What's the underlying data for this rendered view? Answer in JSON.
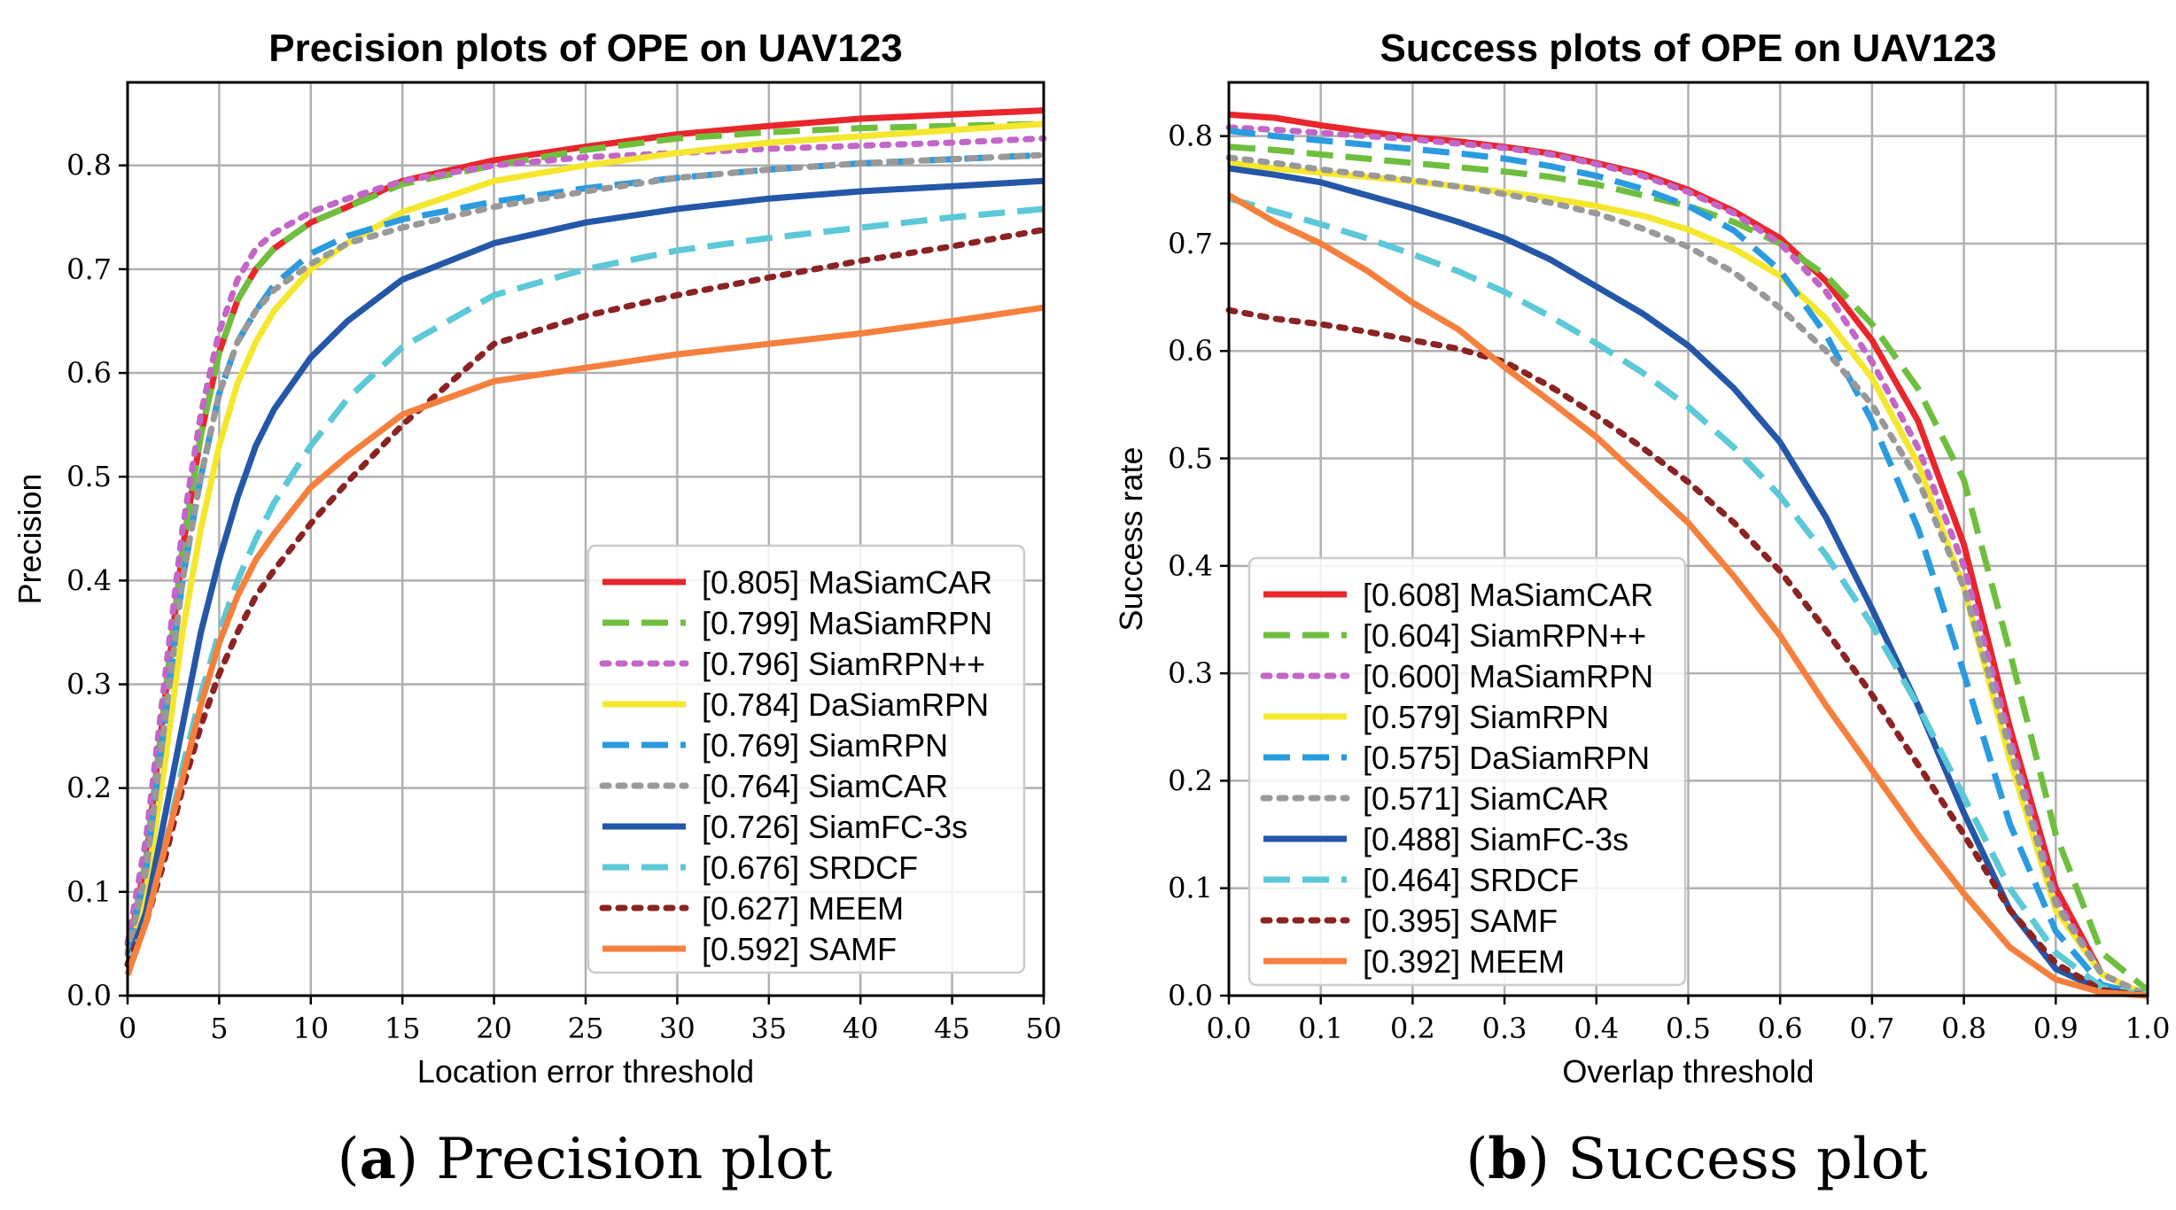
{
  "figure": {
    "caption_a": {
      "label": "a",
      "text": "Precision plot"
    },
    "caption_b": {
      "label": "b",
      "text": "Success plot"
    }
  },
  "chart_data": [
    {
      "type": "line",
      "title": "Precision plots of OPE on UAV123",
      "xlabel": "Location error threshold",
      "ylabel": "Precision",
      "xlim": [
        0,
        50
      ],
      "ylim": [
        0,
        0.88
      ],
      "xticks": [
        0,
        5,
        10,
        15,
        20,
        25,
        30,
        35,
        40,
        45,
        50
      ],
      "xtick_labels": [
        "0",
        "5",
        "10",
        "15",
        "20",
        "25",
        "30",
        "35",
        "40",
        "45",
        "50"
      ],
      "yticks": [
        0.0,
        0.1,
        0.2,
        0.3,
        0.4,
        0.5,
        0.6,
        0.7,
        0.8
      ],
      "ytick_labels": [
        "0.0",
        "0.1",
        "0.2",
        "0.3",
        "0.4",
        "0.5",
        "0.6",
        "0.7",
        "0.8"
      ],
      "grid": true,
      "legend_position": "lower-right",
      "x": [
        0,
        1,
        2,
        3,
        4,
        5,
        6,
        7,
        8,
        10,
        12,
        15,
        20,
        25,
        30,
        35,
        40,
        45,
        50
      ],
      "series": [
        {
          "name": "[0.805] MaSiamCAR",
          "color": "#e8262b",
          "style": "solid",
          "values": [
            0.04,
            0.13,
            0.28,
            0.43,
            0.54,
            0.62,
            0.67,
            0.7,
            0.72,
            0.745,
            0.76,
            0.785,
            0.805,
            0.818,
            0.83,
            0.838,
            0.845,
            0.849,
            0.853
          ]
        },
        {
          "name": "[0.799] MaSiamRPN",
          "color": "#6fbf3f",
          "style": "dashed",
          "values": [
            0.04,
            0.13,
            0.28,
            0.43,
            0.54,
            0.62,
            0.67,
            0.7,
            0.72,
            0.745,
            0.76,
            0.782,
            0.8,
            0.815,
            0.826,
            0.832,
            0.836,
            0.838,
            0.84
          ]
        },
        {
          "name": "[0.796] SiamRPN++",
          "color": "#c266c8",
          "style": "dotted",
          "values": [
            0.05,
            0.15,
            0.3,
            0.45,
            0.56,
            0.64,
            0.69,
            0.72,
            0.735,
            0.755,
            0.768,
            0.785,
            0.8,
            0.808,
            0.812,
            0.816,
            0.819,
            0.822,
            0.826
          ]
        },
        {
          "name": "[0.784] DaSiamRPN",
          "color": "#f5e72e",
          "style": "solid",
          "values": [
            0.03,
            0.1,
            0.22,
            0.35,
            0.45,
            0.53,
            0.59,
            0.63,
            0.66,
            0.7,
            0.725,
            0.755,
            0.785,
            0.8,
            0.812,
            0.822,
            0.828,
            0.834,
            0.84
          ]
        },
        {
          "name": "[0.769] SiamRPN",
          "color": "#2b9be0",
          "style": "dashed",
          "values": [
            0.04,
            0.12,
            0.26,
            0.4,
            0.5,
            0.58,
            0.63,
            0.66,
            0.685,
            0.715,
            0.732,
            0.748,
            0.765,
            0.778,
            0.788,
            0.796,
            0.802,
            0.806,
            0.81
          ]
        },
        {
          "name": "[0.764] SiamCAR",
          "color": "#999999",
          "style": "dotted",
          "values": [
            0.04,
            0.12,
            0.26,
            0.4,
            0.5,
            0.58,
            0.63,
            0.66,
            0.68,
            0.705,
            0.725,
            0.74,
            0.76,
            0.775,
            0.788,
            0.796,
            0.802,
            0.806,
            0.81
          ]
        },
        {
          "name": "[0.726] SiamFC-3s",
          "color": "#2457a8",
          "style": "solid",
          "values": [
            0.03,
            0.08,
            0.17,
            0.26,
            0.35,
            0.42,
            0.48,
            0.53,
            0.565,
            0.615,
            0.65,
            0.69,
            0.725,
            0.745,
            0.758,
            0.768,
            0.775,
            0.78,
            0.785
          ]
        },
        {
          "name": "[0.676] SRDCF",
          "color": "#5cc8d8",
          "style": "dashed",
          "values": [
            0.03,
            0.07,
            0.14,
            0.22,
            0.29,
            0.35,
            0.4,
            0.44,
            0.475,
            0.53,
            0.575,
            0.625,
            0.675,
            0.7,
            0.718,
            0.73,
            0.74,
            0.75,
            0.758
          ]
        },
        {
          "name": "[0.627] MEEM",
          "color": "#8b2323",
          "style": "dotted",
          "values": [
            0.03,
            0.07,
            0.13,
            0.2,
            0.26,
            0.31,
            0.35,
            0.385,
            0.41,
            0.455,
            0.495,
            0.55,
            0.628,
            0.655,
            0.675,
            0.692,
            0.708,
            0.722,
            0.738
          ]
        },
        {
          "name": "[0.592] SAMF",
          "color": "#f5803e",
          "style": "solid",
          "values": [
            0.02,
            0.07,
            0.14,
            0.21,
            0.28,
            0.34,
            0.385,
            0.42,
            0.445,
            0.49,
            0.52,
            0.56,
            0.592,
            0.605,
            0.618,
            0.628,
            0.638,
            0.65,
            0.663
          ]
        }
      ]
    },
    {
      "type": "line",
      "title": "Success plots of OPE on UAV123",
      "xlabel": "Overlap threshold",
      "ylabel": "Success rate",
      "xlim": [
        0,
        1
      ],
      "ylim": [
        0,
        0.85
      ],
      "xticks": [
        0.0,
        0.1,
        0.2,
        0.3,
        0.4,
        0.5,
        0.6,
        0.7,
        0.8,
        0.9,
        1.0
      ],
      "xtick_labels": [
        "0.0",
        "0.1",
        "0.2",
        "0.3",
        "0.4",
        "0.5",
        "0.6",
        "0.7",
        "0.8",
        "0.9",
        "1.0"
      ],
      "yticks": [
        0.0,
        0.1,
        0.2,
        0.3,
        0.4,
        0.5,
        0.6,
        0.7,
        0.8
      ],
      "ytick_labels": [
        "0.0",
        "0.1",
        "0.2",
        "0.3",
        "0.4",
        "0.5",
        "0.6",
        "0.7",
        "0.8"
      ],
      "grid": true,
      "legend_position": "lower-left",
      "x": [
        0.0,
        0.05,
        0.1,
        0.15,
        0.2,
        0.25,
        0.3,
        0.35,
        0.4,
        0.45,
        0.5,
        0.55,
        0.6,
        0.65,
        0.7,
        0.75,
        0.8,
        0.85,
        0.9,
        0.95,
        1.0
      ],
      "series": [
        {
          "name": "[0.608] MaSiamCAR",
          "color": "#e8262b",
          "style": "solid",
          "values": [
            0.82,
            0.817,
            0.81,
            0.804,
            0.799,
            0.795,
            0.79,
            0.784,
            0.775,
            0.765,
            0.75,
            0.73,
            0.705,
            0.665,
            0.61,
            0.535,
            0.42,
            0.25,
            0.1,
            0.02,
            0.0
          ]
        },
        {
          "name": "[0.604] SiamRPN++",
          "color": "#6fbf3f",
          "style": "dashed",
          "values": [
            0.79,
            0.787,
            0.783,
            0.779,
            0.775,
            0.771,
            0.767,
            0.762,
            0.755,
            0.745,
            0.735,
            0.72,
            0.7,
            0.67,
            0.625,
            0.565,
            0.48,
            0.32,
            0.15,
            0.04,
            0.005
          ]
        },
        {
          "name": "[0.600] MaSiamRPN",
          "color": "#c266c8",
          "style": "dotted",
          "values": [
            0.808,
            0.806,
            0.803,
            0.8,
            0.797,
            0.793,
            0.789,
            0.783,
            0.774,
            0.763,
            0.748,
            0.728,
            0.7,
            0.655,
            0.59,
            0.51,
            0.4,
            0.24,
            0.09,
            0.02,
            0.0
          ]
        },
        {
          "name": "[0.579] SiamRPN",
          "color": "#f5e72e",
          "style": "solid",
          "values": [
            0.775,
            0.77,
            0.766,
            0.762,
            0.758,
            0.753,
            0.748,
            0.742,
            0.735,
            0.726,
            0.713,
            0.695,
            0.67,
            0.63,
            0.575,
            0.495,
            0.38,
            0.22,
            0.08,
            0.02,
            0.0
          ]
        },
        {
          "name": "[0.575] DaSiamRPN",
          "color": "#2b9be0",
          "style": "dashed",
          "values": [
            0.805,
            0.8,
            0.796,
            0.792,
            0.788,
            0.784,
            0.779,
            0.772,
            0.763,
            0.751,
            0.735,
            0.712,
            0.675,
            0.615,
            0.535,
            0.435,
            0.3,
            0.16,
            0.06,
            0.01,
            0.0
          ]
        },
        {
          "name": "[0.571] SiamCAR",
          "color": "#999999",
          "style": "dotted",
          "values": [
            0.78,
            0.775,
            0.769,
            0.764,
            0.759,
            0.753,
            0.746,
            0.738,
            0.728,
            0.714,
            0.697,
            0.673,
            0.64,
            0.6,
            0.55,
            0.48,
            0.38,
            0.23,
            0.085,
            0.02,
            0.0
          ]
        },
        {
          "name": "[0.488] SiamFC-3s",
          "color": "#2457a8",
          "style": "solid",
          "values": [
            0.77,
            0.764,
            0.757,
            0.745,
            0.733,
            0.72,
            0.705,
            0.685,
            0.66,
            0.635,
            0.605,
            0.565,
            0.515,
            0.445,
            0.36,
            0.27,
            0.17,
            0.08,
            0.025,
            0.005,
            0.0
          ]
        },
        {
          "name": "[0.464] SRDCF",
          "color": "#5cc8d8",
          "style": "dashed",
          "values": [
            0.742,
            0.73,
            0.718,
            0.705,
            0.69,
            0.674,
            0.655,
            0.632,
            0.607,
            0.58,
            0.548,
            0.51,
            0.465,
            0.41,
            0.345,
            0.27,
            0.185,
            0.1,
            0.04,
            0.008,
            0.0
          ]
        },
        {
          "name": "[0.395] SAMF",
          "color": "#8b2323",
          "style": "dotted",
          "values": [
            0.638,
            0.63,
            0.625,
            0.618,
            0.61,
            0.602,
            0.59,
            0.567,
            0.54,
            0.51,
            0.478,
            0.44,
            0.395,
            0.34,
            0.28,
            0.215,
            0.15,
            0.08,
            0.03,
            0.005,
            0.0
          ]
        },
        {
          "name": "[0.392] MEEM",
          "color": "#f5803e",
          "style": "solid",
          "values": [
            0.745,
            0.72,
            0.7,
            0.675,
            0.645,
            0.62,
            0.585,
            0.553,
            0.52,
            0.48,
            0.44,
            0.39,
            0.335,
            0.27,
            0.21,
            0.15,
            0.095,
            0.045,
            0.015,
            0.003,
            0.0
          ]
        }
      ]
    }
  ]
}
